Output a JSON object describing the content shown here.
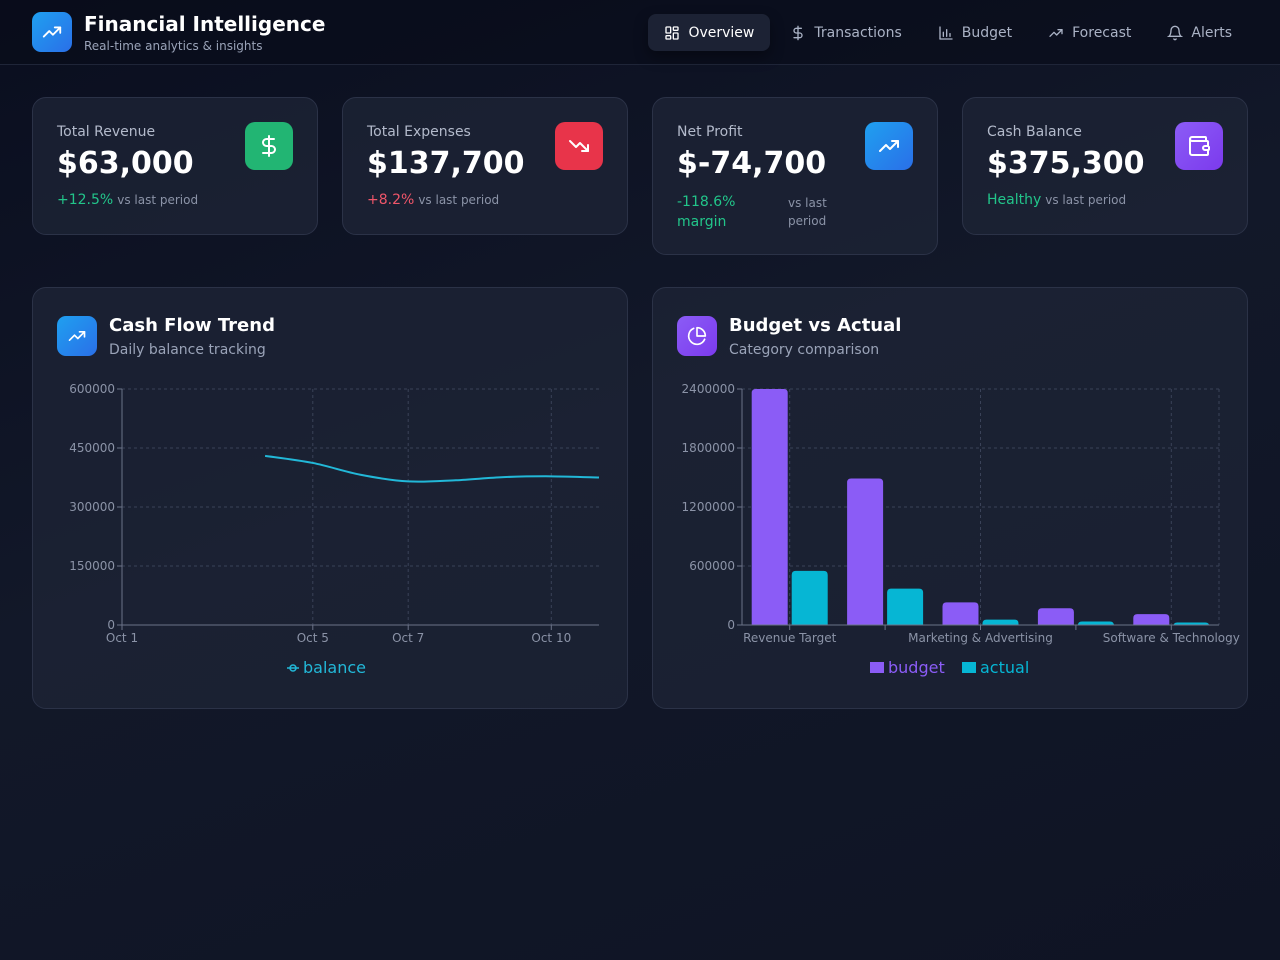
{
  "header": {
    "title": "Financial Intelligence",
    "subtitle": "Real-time analytics & insights",
    "nav": [
      {
        "label": "Overview",
        "icon": "grid-icon",
        "active": true
      },
      {
        "label": "Transactions",
        "icon": "dollar-icon",
        "active": false
      },
      {
        "label": "Budget",
        "icon": "bar-chart-icon",
        "active": false
      },
      {
        "label": "Forecast",
        "icon": "trend-up-icon",
        "active": false
      },
      {
        "label": "Alerts",
        "icon": "bell-icon",
        "active": false
      }
    ]
  },
  "kpis": {
    "revenue": {
      "label": "Total Revenue",
      "value": "$63,000",
      "delta": "+12.5%",
      "note": "vs last period",
      "icon": "dollar-icon",
      "color": "#22b573"
    },
    "expenses": {
      "label": "Total Expenses",
      "value": "$137,700",
      "delta": "+8.2%",
      "note": "vs last period",
      "icon": "trend-down-icon",
      "color": "#e8344a"
    },
    "profit": {
      "label": "Net Profit",
      "value": "$-74,700",
      "delta": "-118.6% margin",
      "note": "vs last period",
      "icon": "trend-up-icon",
      "color": "#1fa0f0"
    },
    "cash": {
      "label": "Cash Balance",
      "value": "$375,300",
      "delta": "Healthy",
      "note": "vs last period",
      "icon": "wallet-icon",
      "color": "#8b5cf6"
    }
  },
  "colors": {
    "positive": "#22c58a",
    "negative": "#f0566a",
    "line": "#22b8d8",
    "budget": "#8b5cf6",
    "actual": "#06b6d4"
  },
  "panels": {
    "cashflow": {
      "title": "Cash Flow Trend",
      "subtitle": "Daily balance tracking",
      "icon": "trend-up-icon"
    },
    "budget": {
      "title": "Budget vs Actual",
      "subtitle": "Category comparison",
      "icon": "pie-chart-icon"
    }
  },
  "chart_data": [
    {
      "type": "line",
      "x_ticks": [
        "Oct 1",
        "Oct 5",
        "Oct 7",
        "Oct 10"
      ],
      "y_ticks": [
        0,
        150000,
        300000,
        450000,
        600000
      ],
      "ylim": [
        0,
        600000
      ],
      "grid": true,
      "legend_position": "bottom",
      "series": [
        {
          "name": "balance",
          "color": "#22b8d8",
          "points": [
            {
              "x": "Oct 4",
              "y": 430000
            },
            {
              "x": "Oct 5",
              "y": 412000
            },
            {
              "x": "Oct 6",
              "y": 382000
            },
            {
              "x": "Oct 7",
              "y": 365000
            },
            {
              "x": "Oct 8",
              "y": 368000
            },
            {
              "x": "Oct 9",
              "y": 376000
            },
            {
              "x": "Oct 10",
              "y": 378000
            },
            {
              "x": "Oct 11",
              "y": 375000
            }
          ]
        }
      ]
    },
    {
      "type": "bar",
      "categories": [
        "Revenue Target",
        "",
        "Marketing & Advertising",
        "",
        "Software & Technology"
      ],
      "y_ticks": [
        0,
        600000,
        1200000,
        1800000,
        2400000
      ],
      "ylim": [
        0,
        2400000
      ],
      "grid": true,
      "legend_position": "bottom",
      "series": [
        {
          "name": "budget",
          "color": "#8b5cf6",
          "values": [
            2400000,
            1490000,
            230000,
            170000,
            110000
          ]
        },
        {
          "name": "actual",
          "color": "#06b6d4",
          "values": [
            550000,
            370000,
            55000,
            35000,
            25000
          ]
        }
      ]
    }
  ]
}
